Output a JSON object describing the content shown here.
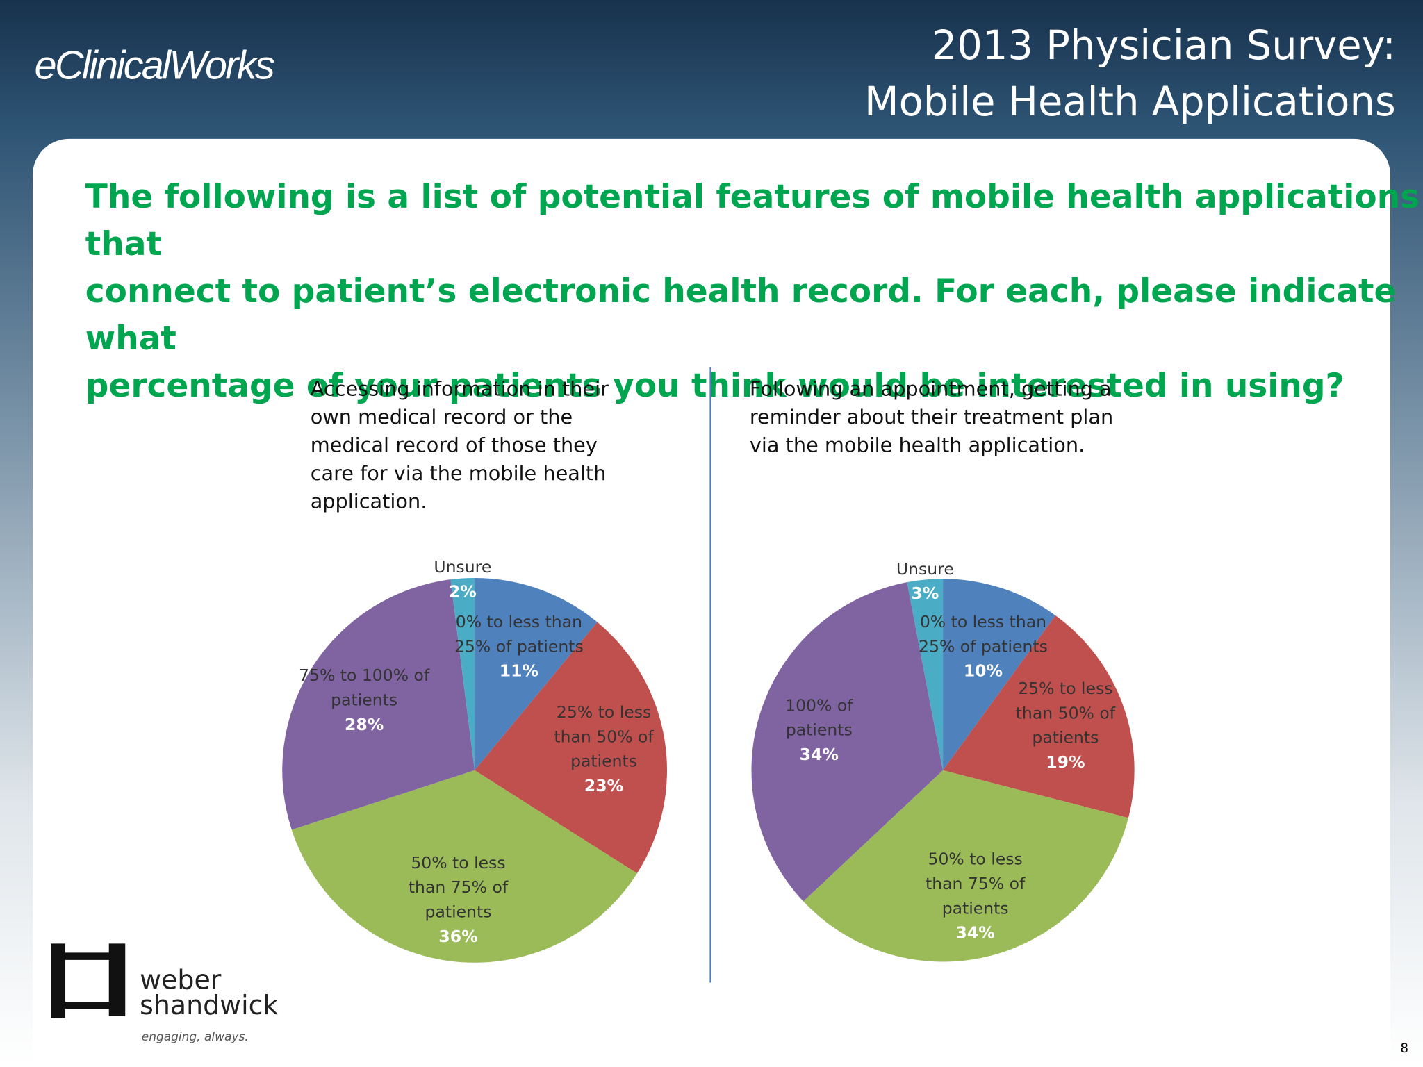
{
  "header": {
    "logo": "eClinicalWorks",
    "title_lines": [
      "2013 Physician Survey:",
      "Mobile Health Applications"
    ]
  },
  "question_lines": [
    "The following is a list of potential features of mobile health applications that",
    "connect to patient’s electronic health record.  For each, please indicate what",
    "percentage of your patients you think would be interested in using?"
  ],
  "chart_data": [
    {
      "type": "pie",
      "title": "Accessing information in their own medical record or the medical record of those they care for via the mobile health application.",
      "categories": [
        "0% to less than 25% of patients",
        "25% to less than 50% of patients",
        "50% to less than 75% of patients",
        "75% to 100% of patients",
        "Unsure"
      ],
      "values": [
        11,
        23,
        36,
        28,
        2
      ],
      "value_labels": [
        "11%",
        "23%",
        "36%",
        "28%",
        "2%"
      ],
      "colors": [
        "#4f81bd",
        "#c0504d",
        "#9bbb59",
        "#8064a2",
        "#4bacc6"
      ]
    },
    {
      "type": "pie",
      "title": "Following an appointment, getting a reminder about their treatment plan via the mobile health application.",
      "categories": [
        "0% to less than 25% of patients",
        "25% to less than 50% of patients",
        "50% to less than 75% of patients",
        "100% of patients",
        "Unsure"
      ],
      "values": [
        10,
        19,
        34,
        34,
        3
      ],
      "value_labels": [
        "10%",
        "19%",
        "34%",
        "34%",
        "3%"
      ],
      "colors": [
        "#4f81bd",
        "#c0504d",
        "#9bbb59",
        "#8064a2",
        "#4bacc6"
      ]
    }
  ],
  "footer": {
    "brand_lines": [
      "weber",
      "shandwick"
    ],
    "tagline": "engaging, always.",
    "page_number": "8"
  }
}
